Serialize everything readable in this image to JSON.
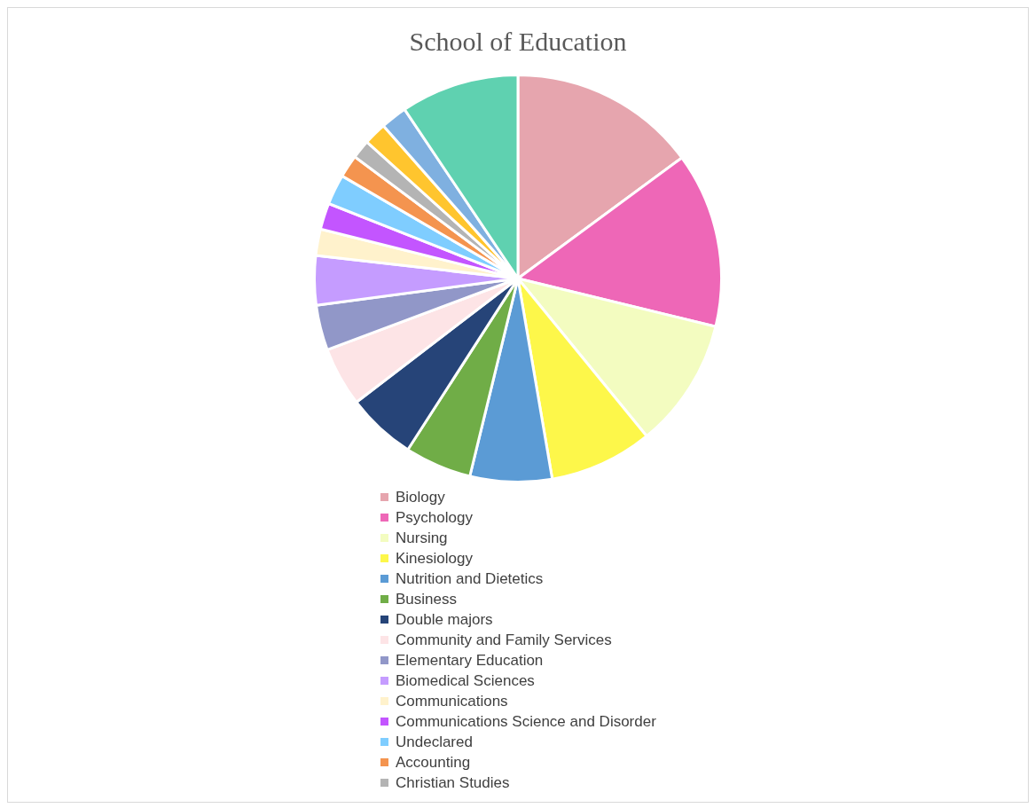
{
  "chart_data": {
    "type": "pie",
    "title": "School of Education",
    "legend": "bottom",
    "categories": [
      "Biology",
      "Psychology",
      "Nursing",
      "Kinesiology",
      "Nutrition and Dietetics",
      "Business",
      "Double majors",
      "Community and Family Services",
      "Elementary Education",
      "Biomedical Sciences",
      "Communications",
      "Communications Science and Disorder",
      "Undeclared",
      "Accounting",
      "Christian Studies",
      null,
      null,
      null
    ],
    "values": [
      14.9,
      13.9,
      10.3,
      8.2,
      6.5,
      5.3,
      5.5,
      4.7,
      3.6,
      3.9,
      2.1,
      2.1,
      2.4,
      1.8,
      1.5,
      1.8,
      2.1,
      9.4
    ],
    "colors": [
      "#e6a5ae",
      "#ee67b7",
      "#f3fcc0",
      "#fdf74a",
      "#5b9bd5",
      "#70ad47",
      "#264478",
      "#fde4e6",
      "#9197c8",
      "#c59cff",
      "#fff2cc",
      "#c355ff",
      "#7fcdff",
      "#f4944f",
      "#b4b4b4",
      "#ffc52e",
      "#7fb0e0",
      "#5fd1b0"
    ]
  }
}
